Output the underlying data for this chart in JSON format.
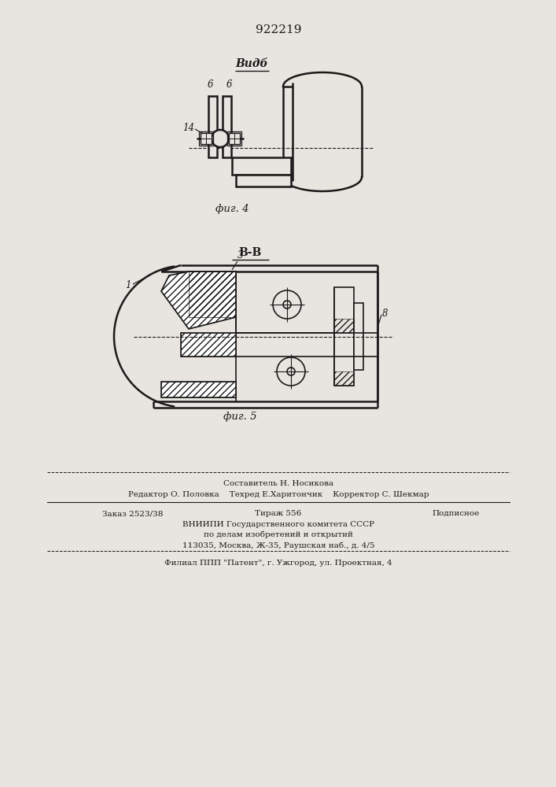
{
  "patent_number": "922219",
  "fig4_label": "фиг. 4",
  "fig5_label": "фиг. 5",
  "view_label": "Видб",
  "section_label": "В-В",
  "bg_color": "#e8e4df",
  "line_color": "#1a1a1a",
  "footer_составитель": "Составитель Н. Носикова",
  "footer_редактор": "Редактор О. Половка",
  "footer_техред": "Техред Е.Харитончик",
  "footer_корректор": "Корректор С. Шекмар",
  "footer_заказ": "Заказ 2523/38",
  "footer_тираж": "Тираж 556",
  "footer_подписное": "Подписное",
  "footer_вниипи": "ВНИИПИ Государственного комитета СССР",
  "footer_поделам": "по делам изобретений и открытий",
  "footer_адрес": "113035, Москва, Ж-35, Раушская наб., д. 4/5",
  "footer_филиал": "Филиал ППП \"Патент\", г. Ужгород, ул. Проектная, 4"
}
